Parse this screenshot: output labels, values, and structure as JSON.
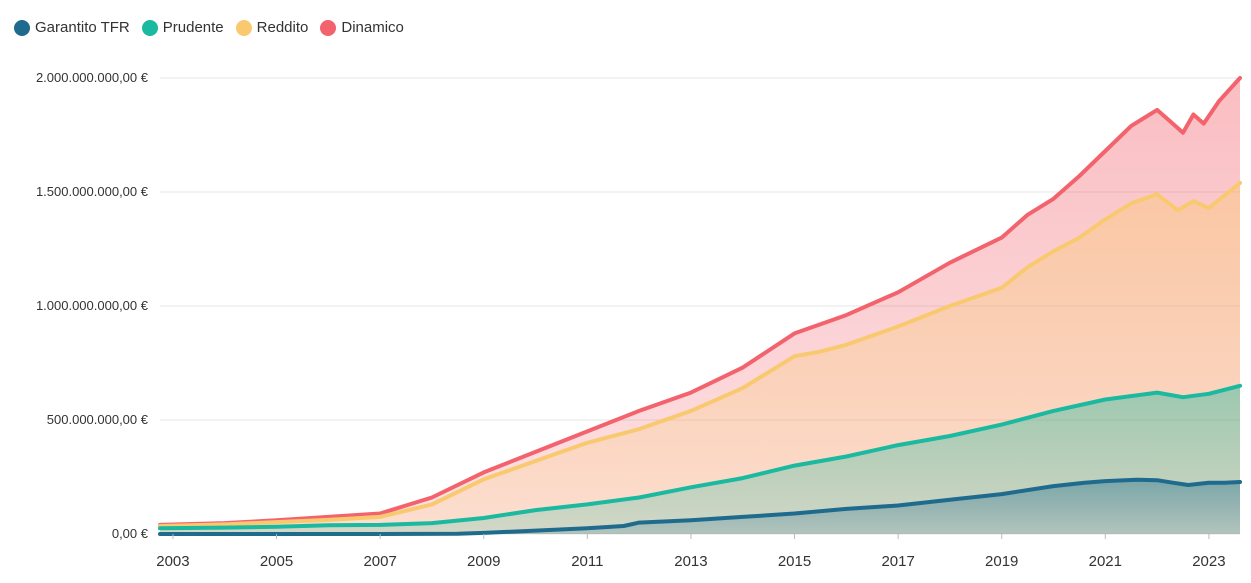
{
  "chart_data": {
    "type": "area",
    "stacked": false,
    "x_axis": {
      "ticks": [
        "2003",
        "2005",
        "2007",
        "2009",
        "2011",
        "2013",
        "2015",
        "2017",
        "2019",
        "2021",
        "2023"
      ],
      "range": [
        2002.75,
        2023.6
      ]
    },
    "y_axis": {
      "ticks": [
        "0,00 €",
        "500.000.000,00 €",
        "1.000.000.000,00 €",
        "1.500.000.000,00 €",
        "2.000.000.000,00 €"
      ],
      "tick_values": [
        0,
        500000000,
        1000000000,
        1500000000,
        2000000000
      ],
      "range": [
        0,
        2000000000
      ]
    },
    "grid": true,
    "legend_position": "top-left",
    "series": [
      {
        "name": "Garantito TFR",
        "color": "#1f6b8e",
        "x": [
          2002.75,
          2005,
          2007,
          2008.5,
          2009,
          2010,
          2011,
          2011.7,
          2012,
          2013,
          2014,
          2015,
          2016,
          2017,
          2018,
          2019,
          2020,
          2020.6,
          2021,
          2021.6,
          2022,
          2022.3,
          2022.6,
          2023,
          2023.3,
          2023.6
        ],
        "y": [
          0,
          0,
          0,
          1000000,
          5000000,
          15000000,
          25000000,
          35000000,
          50000000,
          60000000,
          75000000,
          90000000,
          110000000,
          125000000,
          150000000,
          175000000,
          210000000,
          225000000,
          232000000,
          238000000,
          236000000,
          225000000,
          215000000,
          225000000,
          225000000,
          228000000
        ]
      },
      {
        "name": "Prudente",
        "color": "#1ab9a0",
        "x": [
          2002.75,
          2004,
          2005,
          2006,
          2007,
          2008,
          2009,
          2010,
          2011,
          2012,
          2013,
          2014,
          2015,
          2016,
          2017,
          2018,
          2019,
          2020,
          2021,
          2022,
          2022.5,
          2023,
          2023.6
        ],
        "y": [
          25000000,
          28000000,
          32000000,
          38000000,
          40000000,
          48000000,
          70000000,
          105000000,
          130000000,
          160000000,
          205000000,
          245000000,
          300000000,
          340000000,
          390000000,
          430000000,
          480000000,
          540000000,
          590000000,
          620000000,
          600000000,
          615000000,
          650000000
        ]
      },
      {
        "name": "Reddito",
        "color": "#f9c96f",
        "x": [
          2002.75,
          2004,
          2005,
          2006,
          2007,
          2008,
          2009,
          2010,
          2011,
          2012,
          2013,
          2014,
          2015,
          2015.5,
          2016,
          2017,
          2018,
          2019,
          2019.5,
          2020,
          2020.5,
          2021,
          2021.5,
          2022,
          2022.4,
          2022.7,
          2023,
          2023.6
        ],
        "y": [
          35000000,
          42000000,
          52000000,
          62000000,
          75000000,
          130000000,
          240000000,
          320000000,
          400000000,
          460000000,
          540000000,
          640000000,
          780000000,
          800000000,
          830000000,
          910000000,
          1000000000,
          1080000000,
          1170000000,
          1240000000,
          1300000000,
          1380000000,
          1450000000,
          1490000000,
          1420000000,
          1460000000,
          1430000000,
          1540000000
        ]
      },
      {
        "name": "Dinamico",
        "color": "#f2636d",
        "x": [
          2002.75,
          2004,
          2005,
          2006,
          2007,
          2008,
          2009,
          2010,
          2011,
          2012,
          2013,
          2014,
          2015,
          2015.5,
          2016,
          2017,
          2018,
          2019,
          2019.5,
          2020,
          2020.5,
          2021,
          2021.5,
          2022,
          2022.2,
          2022.5,
          2022.7,
          2022.9,
          2023.2,
          2023.6
        ],
        "y": [
          40000000,
          48000000,
          60000000,
          75000000,
          90000000,
          160000000,
          270000000,
          360000000,
          450000000,
          540000000,
          620000000,
          730000000,
          880000000,
          920000000,
          960000000,
          1060000000,
          1190000000,
          1300000000,
          1400000000,
          1470000000,
          1570000000,
          1680000000,
          1790000000,
          1860000000,
          1820000000,
          1760000000,
          1840000000,
          1800000000,
          1900000000,
          2000000000
        ]
      }
    ]
  }
}
